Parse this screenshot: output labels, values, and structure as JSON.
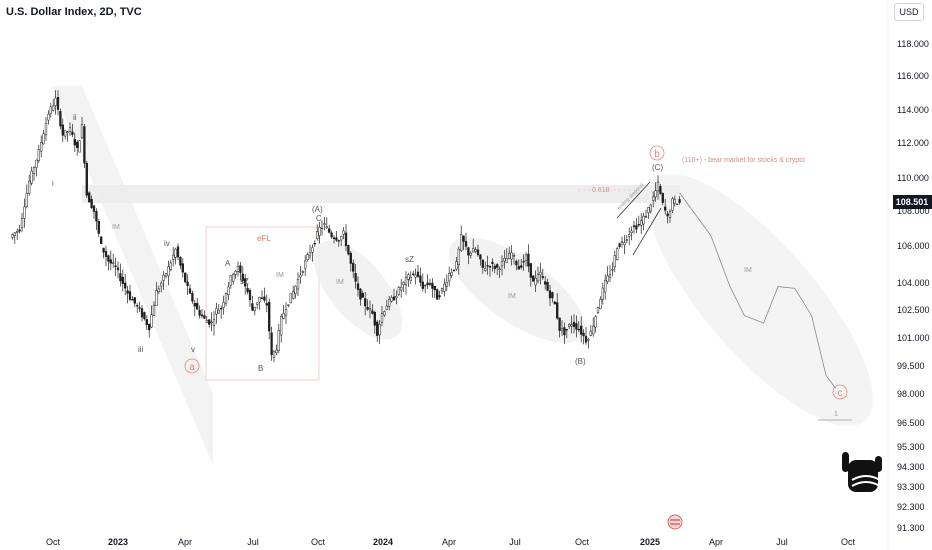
{
  "header": {
    "title": "U.S. Dollar Index, 2D, TVC",
    "currency": "USD"
  },
  "colors": {
    "up": "#1f1f1f",
    "down": "#1f1f1f",
    "accent": "#e0887a",
    "band": "#ececec"
  },
  "chart_data": {
    "type": "candlestick",
    "title": "U.S. Dollar Index, 2D, TVC",
    "ylabel": "USD",
    "ylim": [
      90.8,
      121.2
    ],
    "y_ticks": [
      118.0,
      116.0,
      114.0,
      112.0,
      110.0,
      108.0,
      106.0,
      104.0,
      102.5,
      101.0,
      99.5,
      98.0,
      96.5,
      95.3,
      94.3,
      93.3,
      92.3,
      91.3
    ],
    "x_ticks": [
      {
        "label": "Oct",
        "bold": false
      },
      {
        "label": "2023",
        "bold": true
      },
      {
        "label": "Apr",
        "bold": false
      },
      {
        "label": "Jul",
        "bold": false
      },
      {
        "label": "Oct",
        "bold": false
      },
      {
        "label": "2024",
        "bold": true
      },
      {
        "label": "Apr",
        "bold": false
      },
      {
        "label": "Jul",
        "bold": false
      },
      {
        "label": "Oct",
        "bold": false
      },
      {
        "label": "2025",
        "bold": true
      },
      {
        "label": "Apr",
        "bold": false
      },
      {
        "label": "Jul",
        "bold": false
      },
      {
        "label": "Oct",
        "bold": false
      }
    ],
    "last_price": "108.501",
    "path": [
      [
        0,
        106.5
      ],
      [
        4,
        107.0
      ],
      [
        8,
        109.8
      ],
      [
        12,
        111.5
      ],
      [
        16,
        113.8
      ],
      [
        19,
        114.6
      ],
      [
        22,
        112.5
      ],
      [
        25,
        112.8
      ],
      [
        28,
        111.6
      ],
      [
        30,
        113.0
      ],
      [
        32,
        109.0
      ],
      [
        35,
        108.0
      ],
      [
        38,
        106.0
      ],
      [
        41,
        105.2
      ],
      [
        44,
        104.8
      ],
      [
        47,
        104.0
      ],
      [
        50,
        103.2
      ],
      [
        53,
        102.7
      ],
      [
        56,
        102.0
      ],
      [
        58,
        101.6
      ],
      [
        61,
        103.5
      ],
      [
        63,
        104.0
      ],
      [
        66,
        104.8
      ],
      [
        69,
        105.8
      ],
      [
        72,
        104.5
      ],
      [
        75,
        103.3
      ],
      [
        78,
        102.5
      ],
      [
        81,
        102.0
      ],
      [
        84,
        101.8
      ],
      [
        86,
        102.5
      ],
      [
        88,
        102.6
      ],
      [
        90,
        103.5
      ],
      [
        93,
        104.6
      ],
      [
        95,
        104.8
      ],
      [
        97,
        104.2
      ],
      [
        99,
        103.5
      ],
      [
        101,
        102.5
      ],
      [
        104,
        103.2
      ],
      [
        107,
        102.8
      ],
      [
        109,
        100.0
      ],
      [
        111,
        100.5
      ],
      [
        113,
        102.0
      ],
      [
        115,
        102.7
      ],
      [
        118,
        103.5
      ],
      [
        121,
        104.5
      ],
      [
        124,
        105.4
      ],
      [
        127,
        106.3
      ],
      [
        129,
        107.0
      ],
      [
        131,
        107.2
      ],
      [
        134,
        106.6
      ],
      [
        137,
        106.4
      ],
      [
        139,
        106.7
      ],
      [
        142,
        105.0
      ],
      [
        145,
        103.5
      ],
      [
        148,
        102.8
      ],
      [
        151,
        102.3
      ],
      [
        153,
        101.3
      ],
      [
        155,
        102.3
      ],
      [
        157,
        102.8
      ],
      [
        160,
        103.2
      ],
      [
        163,
        103.8
      ],
      [
        166,
        104.3
      ],
      [
        169,
        104.5
      ],
      [
        172,
        103.8
      ],
      [
        175,
        104.0
      ],
      [
        178,
        103.2
      ],
      [
        180,
        103.6
      ],
      [
        183,
        104.5
      ],
      [
        186,
        105.0
      ],
      [
        188,
        106.5
      ],
      [
        191,
        105.6
      ],
      [
        194,
        105.8
      ],
      [
        197,
        104.8
      ],
      [
        200,
        105.0
      ],
      [
        203,
        104.8
      ],
      [
        206,
        105.2
      ],
      [
        209,
        105.6
      ],
      [
        212,
        104.8
      ],
      [
        215,
        105.4
      ],
      [
        218,
        104.0
      ],
      [
        221,
        104.5
      ],
      [
        224,
        103.6
      ],
      [
        227,
        102.8
      ],
      [
        229,
        101.5
      ],
      [
        231,
        101.3
      ],
      [
        234,
        101.8
      ],
      [
        237,
        101.5
      ],
      [
        240,
        100.9
      ],
      [
        242,
        101.3
      ],
      [
        244,
        102.2
      ],
      [
        246,
        103.2
      ],
      [
        248,
        104.0
      ],
      [
        251,
        104.8
      ],
      [
        253,
        106.0
      ],
      [
        256,
        106.3
      ],
      [
        259,
        107.0
      ],
      [
        262,
        107.2
      ],
      [
        265,
        107.8
      ],
      [
        268,
        108.8
      ],
      [
        270,
        109.6
      ],
      [
        272,
        108.4
      ],
      [
        274,
        107.6
      ],
      [
        276,
        108.6
      ],
      [
        279,
        108.5
      ]
    ],
    "forecast": [
      [
        279,
        109.1
      ],
      [
        292,
        106.6
      ],
      [
        300,
        103.8
      ],
      [
        306,
        102.2
      ],
      [
        314,
        101.8
      ],
      [
        320,
        103.8
      ],
      [
        327,
        103.7
      ],
      [
        334,
        102.2
      ],
      [
        340,
        99.0
      ],
      [
        344,
        98.3
      ]
    ],
    "labels": {
      "waves": [
        "ii",
        "i",
        "iii",
        "v",
        "iv",
        "A",
        "sZ",
        "B",
        "(A)",
        "C",
        "eFL",
        "IM",
        "IM",
        "sZ",
        "IM",
        "(B)",
        "(C)",
        "IM"
      ],
      "circled": [
        "a",
        "b",
        "c"
      ],
      "fib": "0.618",
      "note": "(110+) - bear market for stocks & crypto",
      "diagonal": "ending diagonal",
      "end_mark": "1"
    }
  }
}
